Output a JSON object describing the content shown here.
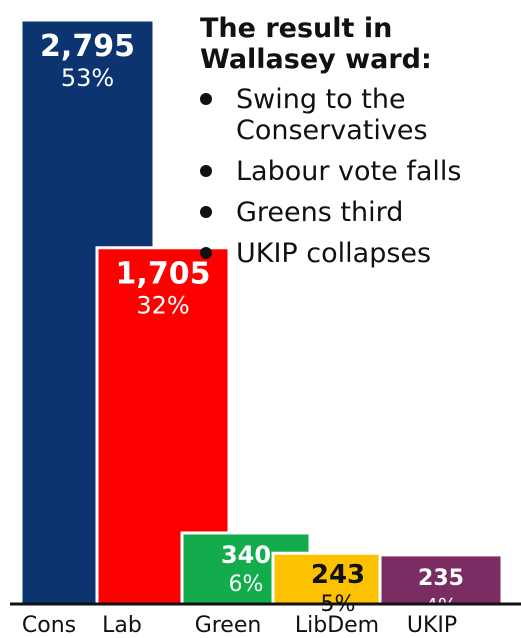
{
  "chart_data": {
    "type": "bar",
    "categories": [
      "Cons",
      "Lab",
      "Green",
      "LibDem",
      "UKIP"
    ],
    "values": [
      2795,
      1705,
      340,
      243,
      235
    ],
    "value_labels": [
      "2,795",
      "1,705",
      "340",
      "243",
      "235"
    ],
    "percent_labels": [
      "53%",
      "32%",
      "6%",
      "5%",
      "4%"
    ],
    "colors": [
      "#0b3471",
      "#fe0000",
      "#12ac4c",
      "#fcc200",
      "#7b2d63"
    ],
    "value_label_colors": [
      "#ffffff",
      "#ffffff",
      "#ffffff",
      "#111111",
      "#ffffff"
    ],
    "percent_label_colors": [
      "#ffffff",
      "#ffffff",
      "#ffffff",
      "#111111",
      "#ffffff"
    ],
    "ylim": [
      0,
      2795
    ],
    "grid": false,
    "legend": "none"
  },
  "annotation": {
    "title_lines": [
      "The result in",
      "Wallasey ward:"
    ],
    "bullets": [
      [
        "Swing to the",
        "Conservatives"
      ],
      [
        "Labour vote falls"
      ],
      [
        "Greens third"
      ],
      [
        "UKIP collapses"
      ]
    ]
  }
}
